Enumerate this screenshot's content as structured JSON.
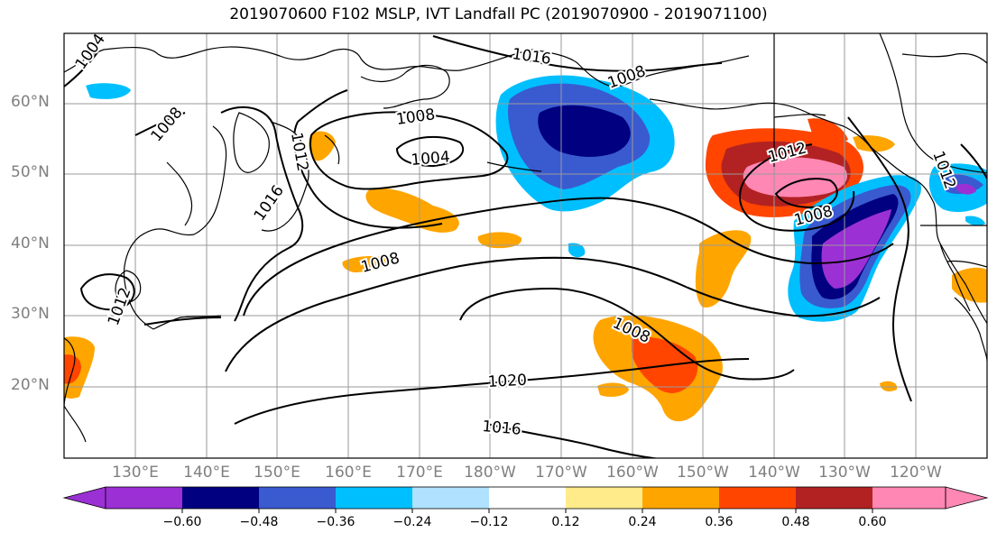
{
  "title": "2019070600 F102 MSLP, IVT Landfall PC (2019070900 - 2019071100)",
  "map": {
    "lat_labels": [
      "60°N",
      "50°N",
      "40°N",
      "30°N",
      "20°N"
    ],
    "lon_labels": [
      "130°E",
      "140°E",
      "150°E",
      "160°E",
      "170°E",
      "180°W",
      "170°W",
      "160°W",
      "150°W",
      "140°W",
      "130°W",
      "120°W"
    ],
    "isobar_labels": [
      "1004",
      "1016",
      "1008",
      "1008",
      "1012",
      "1008",
      "1004",
      "1016",
      "1012",
      "1008",
      "1012",
      "1008",
      "1008",
      "1020",
      "1016",
      "1012",
      "1004",
      "1004"
    ],
    "land_color": "#000000",
    "grid_color": "#9a9a9a"
  },
  "colorbar": {
    "colors": [
      "#9b30d4",
      "#000080",
      "#3a5ad0",
      "#00bfff",
      "#b0e2ff",
      "#ffffff",
      "#ffeb8a",
      "#ffa500",
      "#ff4500",
      "#b22222",
      "#ff87b4"
    ],
    "ticks": [
      "−0.60",
      "−0.48",
      "−0.36",
      "−0.24",
      "−0.12",
      "0.12",
      "0.24",
      "0.36",
      "0.48",
      "0.60"
    ]
  }
}
